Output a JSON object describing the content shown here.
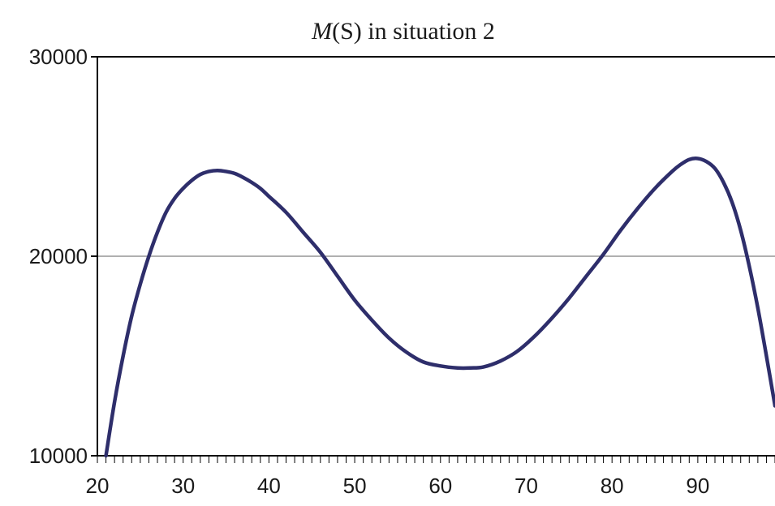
{
  "chart_data": {
    "type": "line",
    "title_italic": "M",
    "title_rest": "(S) in situation 2",
    "xlabel": "",
    "ylabel": "",
    "xlim": [
      20,
      99
    ],
    "ylim": [
      10000,
      30000
    ],
    "x_ticks": [
      20,
      30,
      40,
      50,
      60,
      70,
      80,
      90
    ],
    "y_ticks": [
      10000,
      20000,
      30000
    ],
    "x_tick_labels": [
      "20",
      "30",
      "40",
      "50",
      "60",
      "70",
      "80",
      "90"
    ],
    "y_tick_labels": [
      "10000",
      "20000",
      "30000"
    ],
    "grid": "horizontal gridline at 20000",
    "legend": "none",
    "line_color": "#2e2e6b",
    "series": [
      {
        "x": [
          21,
          22,
          23,
          24,
          25,
          26,
          27,
          28,
          29,
          30,
          31,
          32,
          33,
          34,
          35,
          36,
          37,
          38,
          39,
          40,
          42,
          44,
          46,
          48,
          50,
          52,
          54,
          56,
          58,
          60,
          62,
          63.5,
          65,
          67,
          69,
          71,
          73,
          75,
          77,
          79,
          81,
          83,
          85,
          87,
          88,
          89,
          90,
          91,
          92,
          93,
          94,
          95,
          96,
          97,
          98,
          99
        ],
        "values": [
          10000,
          12700,
          15000,
          17000,
          18600,
          20000,
          21200,
          22200,
          22900,
          23400,
          23800,
          24100,
          24250,
          24300,
          24250,
          24150,
          23950,
          23700,
          23400,
          23000,
          22200,
          21200,
          20200,
          19000,
          17800,
          16800,
          15900,
          15200,
          14700,
          14500,
          14400,
          14400,
          14450,
          14750,
          15250,
          16000,
          16900,
          17900,
          19000,
          20100,
          21300,
          22400,
          23400,
          24250,
          24600,
          24850,
          24900,
          24750,
          24400,
          23700,
          22700,
          21300,
          19500,
          17400,
          15000,
          12500
        ]
      }
    ]
  }
}
